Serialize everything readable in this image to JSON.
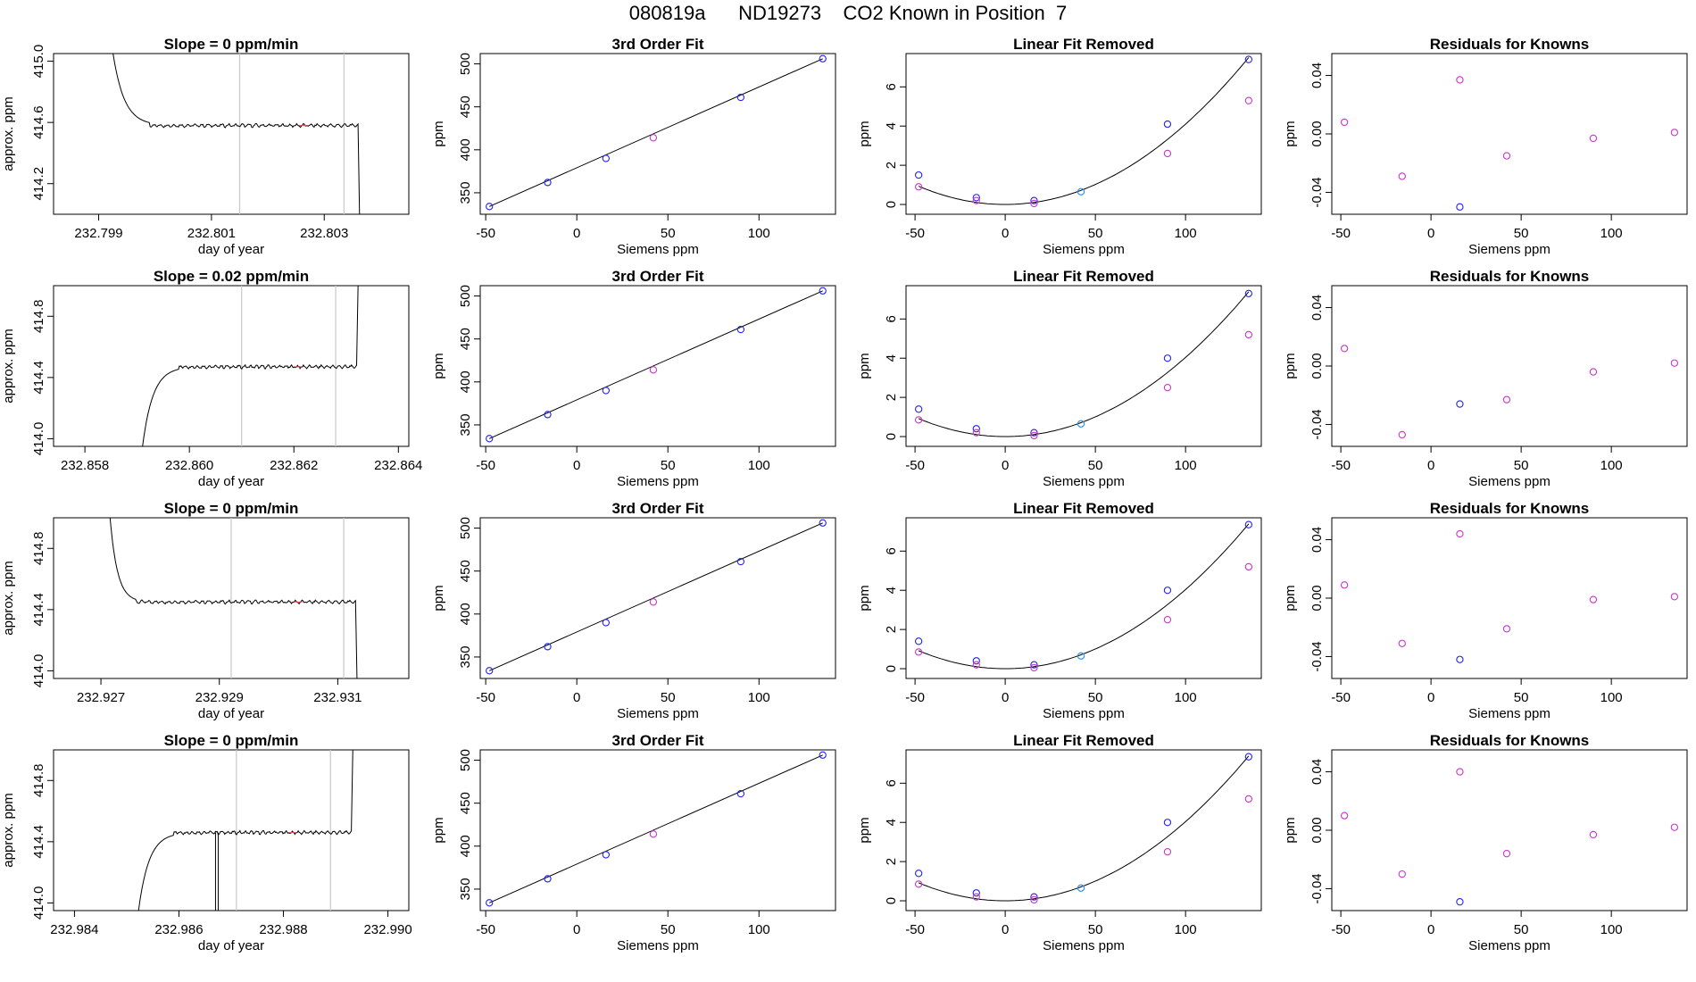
{
  "figure_title": "080819a      ND19273    CO2 Known in Position  7",
  "colors": {
    "trace": "#000000",
    "point_blue": "#2222ee",
    "point_magenta": "#cc33cc",
    "point_cyan": "#1e90ff",
    "marker_line": "#c8c8c8",
    "segment_red": "#e05050"
  },
  "chart_data": [
    {
      "type": "line",
      "row": 1,
      "title": "Slope =  0  ppm/min",
      "xlabel": "day of year",
      "ylabel": "approx. ppm",
      "xlim": [
        232.7982,
        232.8045
      ],
      "ylim": [
        414.0,
        415.05
      ],
      "xticks": [
        232.799,
        232.801,
        232.803
      ],
      "xtick_labels": [
        "232.799",
        "232.801",
        "232.803"
      ],
      "yticks": [
        414.2,
        414.6,
        415.0
      ],
      "ytick_labels": [
        "414.2",
        "414.6",
        "415.0"
      ],
      "vlines": [
        232.8015,
        232.80335
      ],
      "trace": {
        "start": 232.7991,
        "rise_end": 232.7999,
        "peak": 415.6,
        "level": 414.58,
        "end": 232.8036,
        "drop": "down",
        "pre_level": null
      },
      "grid": false,
      "legend": null
    },
    {
      "type": "scatter",
      "row": 1,
      "title": "3rd Order Fit",
      "xlabel": "Siemens ppm",
      "ylabel": "ppm",
      "xlim": [
        -53,
        142
      ],
      "ylim": [
        325,
        512
      ],
      "xticks": [
        -50,
        0,
        50,
        100
      ],
      "yticks": [
        350,
        400,
        450,
        500
      ],
      "points": [
        {
          "x": -48,
          "y": 334,
          "c": "blue"
        },
        {
          "x": -16,
          "y": 362,
          "c": "blue"
        },
        {
          "x": 16,
          "y": 390,
          "c": "blue"
        },
        {
          "x": 42,
          "y": 414,
          "c": "magenta"
        },
        {
          "x": 90,
          "y": 461,
          "c": "blue"
        },
        {
          "x": 135,
          "y": 506,
          "c": "blue"
        }
      ],
      "line": [
        [
          -48,
          334
        ],
        [
          135,
          506
        ]
      ],
      "grid": false,
      "legend": null
    },
    {
      "type": "scatter",
      "row": 1,
      "title": "Linear Fit Removed",
      "xlabel": "Siemens ppm",
      "ylabel": "ppm",
      "xlim": [
        -55,
        142
      ],
      "ylim": [
        -0.5,
        7.7
      ],
      "xticks": [
        -50,
        0,
        50,
        100
      ],
      "yticks": [
        0,
        2,
        4,
        6
      ],
      "points": [
        {
          "x": -48,
          "y": 1.5,
          "c": "blue"
        },
        {
          "x": -48,
          "y": 0.9,
          "c": "magenta"
        },
        {
          "x": -16,
          "y": 0.35,
          "c": "blue"
        },
        {
          "x": -16,
          "y": 0.2,
          "c": "magenta"
        },
        {
          "x": 16,
          "y": 0.2,
          "c": "blue"
        },
        {
          "x": 16,
          "y": 0.05,
          "c": "magenta"
        },
        {
          "x": 42,
          "y": 0.65,
          "c": "cyan"
        },
        {
          "x": 90,
          "y": 4.1,
          "c": "blue"
        },
        {
          "x": 90,
          "y": 2.6,
          "c": "magenta"
        },
        {
          "x": 135,
          "y": 7.4,
          "c": "blue"
        },
        {
          "x": 135,
          "y": 5.3,
          "c": "magenta"
        }
      ],
      "curve": {
        "k": 0.000406,
        "c": 4e-08
      },
      "grid": false,
      "legend": null
    },
    {
      "type": "scatter",
      "row": 1,
      "title": "Residuals for Knowns",
      "xlabel": "Siemens ppm",
      "ylabel": "ppm",
      "xlim": [
        -55,
        142
      ],
      "ylim": [
        -0.055,
        0.055
      ],
      "xticks": [
        -50,
        0,
        50,
        100
      ],
      "yticks": [
        -0.04,
        0.0,
        0.04
      ],
      "ytick_labels": [
        "-0.04",
        "0.00",
        "0.04"
      ],
      "points": [
        {
          "x": -48,
          "y": 0.008,
          "c": "magenta"
        },
        {
          "x": -16,
          "y": -0.029,
          "c": "magenta"
        },
        {
          "x": 16,
          "y": 0.037,
          "c": "magenta"
        },
        {
          "x": 16,
          "y": -0.05,
          "c": "blue"
        },
        {
          "x": 42,
          "y": -0.015,
          "c": "magenta"
        },
        {
          "x": 90,
          "y": -0.003,
          "c": "magenta"
        },
        {
          "x": 135,
          "y": 0.001,
          "c": "magenta"
        }
      ],
      "grid": false,
      "legend": null
    },
    {
      "type": "line",
      "row": 2,
      "title": "Slope =  0.02  ppm/min",
      "xlabel": "day of year",
      "ylabel": "approx. ppm",
      "xlim": [
        232.8574,
        232.8642
      ],
      "ylim": [
        413.95,
        415.0
      ],
      "xticks": [
        232.858,
        232.86,
        232.862,
        232.864
      ],
      "xtick_labels": [
        "232.858",
        "232.860",
        "232.862",
        "232.864"
      ],
      "yticks": [
        414.0,
        414.4,
        414.8
      ],
      "ytick_labels": [
        "414.0",
        "414.4",
        "414.8"
      ],
      "vlines": [
        232.861,
        232.8628
      ],
      "trace": {
        "start": 232.859,
        "rise_end": 232.8598,
        "peak": 413.6,
        "level": 414.47,
        "end": 232.8632,
        "drop": "up",
        "pre_level": null
      },
      "grid": false,
      "legend": null
    },
    {
      "type": "scatter",
      "row": 2,
      "title": "3rd Order Fit",
      "xlabel": "Siemens ppm",
      "ylabel": "ppm",
      "xlim": [
        -53,
        142
      ],
      "ylim": [
        325,
        512
      ],
      "xticks": [
        -50,
        0,
        50,
        100
      ],
      "yticks": [
        350,
        400,
        450,
        500
      ],
      "points": [
        {
          "x": -48,
          "y": 334,
          "c": "blue"
        },
        {
          "x": -16,
          "y": 362,
          "c": "blue"
        },
        {
          "x": 16,
          "y": 390,
          "c": "blue"
        },
        {
          "x": 42,
          "y": 414,
          "c": "magenta"
        },
        {
          "x": 90,
          "y": 461,
          "c": "blue"
        },
        {
          "x": 135,
          "y": 506,
          "c": "blue"
        }
      ],
      "line": [
        [
          -48,
          334
        ],
        [
          135,
          506
        ]
      ],
      "grid": false,
      "legend": null
    },
    {
      "type": "scatter",
      "row": 2,
      "title": "Linear Fit Removed",
      "xlabel": "Siemens ppm",
      "ylabel": "ppm",
      "xlim": [
        -55,
        142
      ],
      "ylim": [
        -0.5,
        7.7
      ],
      "xticks": [
        -50,
        0,
        50,
        100
      ],
      "yticks": [
        0,
        2,
        4,
        6
      ],
      "points": [
        {
          "x": -48,
          "y": 1.4,
          "c": "blue"
        },
        {
          "x": -48,
          "y": 0.85,
          "c": "magenta"
        },
        {
          "x": -16,
          "y": 0.4,
          "c": "blue"
        },
        {
          "x": -16,
          "y": 0.2,
          "c": "magenta"
        },
        {
          "x": 16,
          "y": 0.2,
          "c": "blue"
        },
        {
          "x": 16,
          "y": 0.05,
          "c": "magenta"
        },
        {
          "x": 42,
          "y": 0.65,
          "c": "cyan"
        },
        {
          "x": 90,
          "y": 4.0,
          "c": "blue"
        },
        {
          "x": 90,
          "y": 2.5,
          "c": "magenta"
        },
        {
          "x": 135,
          "y": 7.3,
          "c": "blue"
        },
        {
          "x": 135,
          "y": 5.2,
          "c": "magenta"
        }
      ],
      "curve": {
        "k": 0.0004,
        "c": 4e-08
      },
      "grid": false,
      "legend": null
    },
    {
      "type": "scatter",
      "row": 2,
      "title": "Residuals for Knowns",
      "xlabel": "Siemens ppm",
      "ylabel": "ppm",
      "xlim": [
        -55,
        142
      ],
      "ylim": [
        -0.055,
        0.055
      ],
      "xticks": [
        -50,
        0,
        50,
        100
      ],
      "yticks": [
        -0.04,
        0.0,
        0.04
      ],
      "ytick_labels": [
        "-0.04",
        "0.00",
        "0.04"
      ],
      "points": [
        {
          "x": -48,
          "y": 0.012,
          "c": "magenta"
        },
        {
          "x": -16,
          "y": -0.047,
          "c": "magenta"
        },
        {
          "x": 16,
          "y": -0.026,
          "c": "blue"
        },
        {
          "x": 42,
          "y": -0.023,
          "c": "magenta"
        },
        {
          "x": 90,
          "y": -0.004,
          "c": "magenta"
        },
        {
          "x": 135,
          "y": 0.002,
          "c": "magenta"
        }
      ],
      "grid": false,
      "legend": null
    },
    {
      "type": "line",
      "row": 3,
      "title": "Slope =  0  ppm/min",
      "xlabel": "day of year",
      "ylabel": "approx. ppm",
      "xlim": [
        232.9262,
        232.9322
      ],
      "ylim": [
        413.95,
        415.0
      ],
      "xticks": [
        232.927,
        232.929,
        232.931
      ],
      "xtick_labels": [
        "232.927",
        "232.929",
        "232.931"
      ],
      "yticks": [
        414.0,
        414.4,
        414.8
      ],
      "ytick_labels": [
        "414.0",
        "414.4",
        "414.8"
      ],
      "vlines": [
        232.9292,
        232.9311
      ],
      "trace": {
        "start": 232.9271,
        "rise_end": 232.9276,
        "peak": 415.3,
        "level": 414.45,
        "end": 232.9313,
        "drop": "down",
        "pre_level": null
      },
      "grid": false,
      "legend": null
    },
    {
      "type": "scatter",
      "row": 3,
      "title": "3rd Order Fit",
      "xlabel": "Siemens ppm",
      "ylabel": "ppm",
      "xlim": [
        -53,
        142
      ],
      "ylim": [
        325,
        512
      ],
      "xticks": [
        -50,
        0,
        50,
        100
      ],
      "yticks": [
        350,
        400,
        450,
        500
      ],
      "points": [
        {
          "x": -48,
          "y": 334,
          "c": "blue"
        },
        {
          "x": -16,
          "y": 362,
          "c": "blue"
        },
        {
          "x": 16,
          "y": 390,
          "c": "blue"
        },
        {
          "x": 42,
          "y": 414,
          "c": "magenta"
        },
        {
          "x": 90,
          "y": 461,
          "c": "blue"
        },
        {
          "x": 135,
          "y": 506,
          "c": "blue"
        }
      ],
      "line": [
        [
          -48,
          334
        ],
        [
          135,
          506
        ]
      ],
      "grid": false,
      "legend": null
    },
    {
      "type": "scatter",
      "row": 3,
      "title": "Linear Fit Removed",
      "xlabel": "Siemens ppm",
      "ylabel": "ppm",
      "xlim": [
        -55,
        142
      ],
      "ylim": [
        -0.5,
        7.7
      ],
      "xticks": [
        -50,
        0,
        50,
        100
      ],
      "yticks": [
        0,
        2,
        4,
        6
      ],
      "points": [
        {
          "x": -48,
          "y": 1.4,
          "c": "blue"
        },
        {
          "x": -48,
          "y": 0.85,
          "c": "magenta"
        },
        {
          "x": -16,
          "y": 0.4,
          "c": "blue"
        },
        {
          "x": -16,
          "y": 0.2,
          "c": "magenta"
        },
        {
          "x": 16,
          "y": 0.2,
          "c": "blue"
        },
        {
          "x": 16,
          "y": 0.05,
          "c": "magenta"
        },
        {
          "x": 42,
          "y": 0.65,
          "c": "cyan"
        },
        {
          "x": 90,
          "y": 4.0,
          "c": "blue"
        },
        {
          "x": 90,
          "y": 2.5,
          "c": "magenta"
        },
        {
          "x": 135,
          "y": 7.35,
          "c": "blue"
        },
        {
          "x": 135,
          "y": 5.2,
          "c": "magenta"
        }
      ],
      "curve": {
        "k": 0.0004,
        "c": 4e-08
      },
      "grid": false,
      "legend": null
    },
    {
      "type": "scatter",
      "row": 3,
      "title": "Residuals for Knowns",
      "xlabel": "Siemens ppm",
      "ylabel": "ppm",
      "xlim": [
        -55,
        142
      ],
      "ylim": [
        -0.055,
        0.055
      ],
      "xticks": [
        -50,
        0,
        50,
        100
      ],
      "yticks": [
        -0.04,
        0.0,
        0.04
      ],
      "ytick_labels": [
        "-0.04",
        "0.00",
        "0.04"
      ],
      "points": [
        {
          "x": -48,
          "y": 0.009,
          "c": "magenta"
        },
        {
          "x": -16,
          "y": -0.031,
          "c": "magenta"
        },
        {
          "x": 16,
          "y": 0.044,
          "c": "magenta"
        },
        {
          "x": 16,
          "y": -0.042,
          "c": "blue"
        },
        {
          "x": 42,
          "y": -0.021,
          "c": "magenta"
        },
        {
          "x": 90,
          "y": -0.001,
          "c": "magenta"
        },
        {
          "x": 135,
          "y": 0.001,
          "c": "magenta"
        }
      ],
      "grid": false,
      "legend": null
    },
    {
      "type": "line",
      "row": 4,
      "title": "Slope =  0  ppm/min",
      "xlabel": "day of year",
      "ylabel": "approx. ppm",
      "xlim": [
        232.9836,
        232.9904
      ],
      "ylim": [
        413.95,
        415.0
      ],
      "xticks": [
        232.984,
        232.986,
        232.988,
        232.99
      ],
      "xtick_labels": [
        "232.984",
        "232.986",
        "232.988",
        "232.990"
      ],
      "yticks": [
        414.0,
        414.4,
        414.8
      ],
      "ytick_labels": [
        "414.0",
        "414.4",
        "414.8"
      ],
      "vlines": [
        232.9871,
        232.9889
      ],
      "trace": {
        "start": 232.9851,
        "rise_end": 232.9859,
        "peak": 413.5,
        "level": 414.46,
        "end": 232.9893,
        "drop": "up",
        "pre_level": null,
        "spike": 232.9867
      },
      "grid": false,
      "legend": null
    },
    {
      "type": "scatter",
      "row": 4,
      "title": "3rd Order Fit",
      "xlabel": "Siemens ppm",
      "ylabel": "ppm",
      "xlim": [
        -53,
        142
      ],
      "ylim": [
        325,
        512
      ],
      "xticks": [
        -50,
        0,
        50,
        100
      ],
      "yticks": [
        350,
        400,
        450,
        500
      ],
      "points": [
        {
          "x": -48,
          "y": 334,
          "c": "blue"
        },
        {
          "x": -16,
          "y": 362,
          "c": "blue"
        },
        {
          "x": 16,
          "y": 390,
          "c": "blue"
        },
        {
          "x": 42,
          "y": 414,
          "c": "magenta"
        },
        {
          "x": 90,
          "y": 461,
          "c": "blue"
        },
        {
          "x": 135,
          "y": 506,
          "c": "blue"
        }
      ],
      "line": [
        [
          -48,
          334
        ],
        [
          135,
          506
        ]
      ],
      "grid": false,
      "legend": null
    },
    {
      "type": "scatter",
      "row": 4,
      "title": "Linear Fit Removed",
      "xlabel": "Siemens ppm",
      "ylabel": "ppm",
      "xlim": [
        -55,
        142
      ],
      "ylim": [
        -0.5,
        7.7
      ],
      "xticks": [
        -50,
        0,
        50,
        100
      ],
      "yticks": [
        0,
        2,
        4,
        6
      ],
      "points": [
        {
          "x": -48,
          "y": 1.4,
          "c": "blue"
        },
        {
          "x": -48,
          "y": 0.85,
          "c": "magenta"
        },
        {
          "x": -16,
          "y": 0.4,
          "c": "blue"
        },
        {
          "x": -16,
          "y": 0.2,
          "c": "magenta"
        },
        {
          "x": 16,
          "y": 0.2,
          "c": "blue"
        },
        {
          "x": 16,
          "y": 0.05,
          "c": "magenta"
        },
        {
          "x": 42,
          "y": 0.65,
          "c": "cyan"
        },
        {
          "x": 90,
          "y": 4.0,
          "c": "blue"
        },
        {
          "x": 90,
          "y": 2.5,
          "c": "magenta"
        },
        {
          "x": 135,
          "y": 7.35,
          "c": "blue"
        },
        {
          "x": 135,
          "y": 5.2,
          "c": "magenta"
        }
      ],
      "curve": {
        "k": 0.0004,
        "c": 4e-08
      },
      "grid": false,
      "legend": null
    },
    {
      "type": "scatter",
      "row": 4,
      "title": "Residuals for Knowns",
      "xlabel": "Siemens ppm",
      "ylabel": "ppm",
      "xlim": [
        -55,
        142
      ],
      "ylim": [
        -0.055,
        0.055
      ],
      "xticks": [
        -50,
        0,
        50,
        100
      ],
      "yticks": [
        -0.04,
        0.0,
        0.04
      ],
      "ytick_labels": [
        "-0.04",
        "0.00",
        "0.04"
      ],
      "points": [
        {
          "x": -48,
          "y": 0.01,
          "c": "magenta"
        },
        {
          "x": -16,
          "y": -0.03,
          "c": "magenta"
        },
        {
          "x": 16,
          "y": 0.04,
          "c": "magenta"
        },
        {
          "x": 16,
          "y": -0.049,
          "c": "blue"
        },
        {
          "x": 42,
          "y": -0.016,
          "c": "magenta"
        },
        {
          "x": 90,
          "y": -0.003,
          "c": "magenta"
        },
        {
          "x": 135,
          "y": 0.002,
          "c": "magenta"
        }
      ],
      "grid": false,
      "legend": null
    }
  ]
}
